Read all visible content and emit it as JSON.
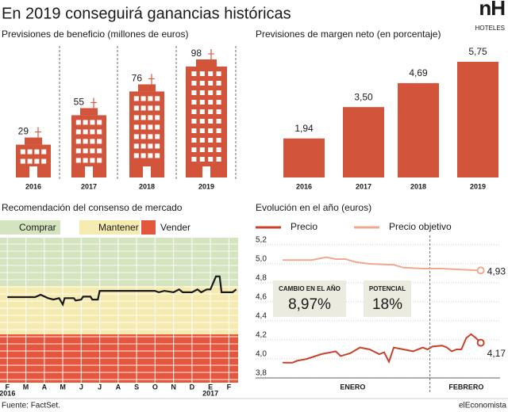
{
  "title": "En 2019 conseguirá ganancias históricas",
  "logo": {
    "mark": "nH",
    "name": "HOTELES"
  },
  "source": "Fuente: FactSet.",
  "brand": "elEconomista",
  "chart_data": [
    {
      "type": "building",
      "title": "Previsiones de beneficio (millones de euros)",
      "categories": [
        "2016",
        "2017",
        "2018",
        "2019"
      ],
      "values": [
        29,
        55,
        76,
        98
      ],
      "color": "#d2553b"
    },
    {
      "type": "bar",
      "title": "Previsiones de margen neto (en porcentaje)",
      "categories": [
        "2016",
        "2017",
        "2018",
        "2019"
      ],
      "values": [
        1.94,
        3.5,
        4.69,
        5.75
      ],
      "value_labels": [
        "1,94",
        "3,50",
        "4,69",
        "5,75"
      ],
      "color": "#d2553b"
    },
    {
      "type": "zone-line",
      "title": "Recomendación del consenso de mercado",
      "zones": [
        {
          "name": "Comprar",
          "color": "#d3e4bf",
          "range": [
            2,
            3
          ]
        },
        {
          "name": "Mantener",
          "color": "#f5ebb0",
          "range": [
            1,
            2
          ]
        },
        {
          "name": "Vender",
          "color": "#e4563d",
          "range": [
            0,
            1
          ]
        }
      ],
      "x": [
        0,
        1.5,
        1.8,
        2.2,
        2.5,
        2.8,
        3.0,
        3.1,
        3.6,
        3.7,
        4.0,
        4.1,
        4.5,
        4.6,
        4.9,
        5.0,
        8.0,
        8.2,
        8.5,
        9.0,
        9.3,
        9.5,
        10.0,
        10.3,
        10.5,
        10.8,
        11.0,
        11.3,
        11.5,
        11.6,
        12.2,
        12.4
      ],
      "values": [
        1.77,
        1.77,
        1.82,
        1.75,
        1.72,
        1.75,
        1.62,
        1.75,
        1.75,
        1.7,
        1.72,
        1.78,
        1.78,
        1.72,
        1.72,
        1.9,
        1.9,
        1.87,
        1.9,
        1.87,
        1.93,
        1.87,
        1.87,
        1.93,
        1.87,
        1.93,
        1.93,
        2.2,
        2.2,
        1.87,
        1.87,
        1.93
      ],
      "color": "#1a1a1a",
      "xlim": [
        -0.4,
        12.5
      ],
      "ylim": [
        0,
        3
      ],
      "xticks": [
        {
          "value": 0,
          "label": "F"
        },
        {
          "value": 1,
          "label": "M"
        },
        {
          "value": 2,
          "label": "A"
        },
        {
          "value": 3,
          "label": "M"
        },
        {
          "value": 4,
          "label": "J"
        },
        {
          "value": 5,
          "label": "J"
        },
        {
          "value": 6,
          "label": "A"
        },
        {
          "value": 7,
          "label": "S"
        },
        {
          "value": 8,
          "label": "O"
        },
        {
          "value": 9,
          "label": "N"
        },
        {
          "value": 10,
          "label": "D"
        },
        {
          "value": 11,
          "label": "E"
        },
        {
          "value": 12,
          "label": "F"
        }
      ],
      "year_labels": [
        {
          "value": 0,
          "label": "2016"
        },
        {
          "value": 11,
          "label": "2017"
        }
      ]
    },
    {
      "type": "line",
      "title": "Evolución en el año (euros)",
      "series": [
        {
          "name": "Precio",
          "color": "#c8412a",
          "x": [
            1,
            3,
            4,
            6,
            9,
            12,
            13,
            15,
            17,
            19,
            21,
            22,
            23,
            24,
            26,
            28,
            30,
            31,
            32,
            34,
            35,
            36,
            37,
            38,
            39,
            40,
            41,
            42
          ],
          "values": [
            3.96,
            3.96,
            3.98,
            4.0,
            4.05,
            4.08,
            4.03,
            4.06,
            4.12,
            4.1,
            4.05,
            4.07,
            3.97,
            4.12,
            4.1,
            4.08,
            4.12,
            4.1,
            4.13,
            4.14,
            4.12,
            4.08,
            4.1,
            4.1,
            4.22,
            4.26,
            4.22,
            4.17
          ],
          "value_labels": [
            null,
            null,
            null,
            null,
            null,
            null,
            null,
            null,
            null,
            null,
            null,
            null,
            null,
            null,
            null,
            null,
            null,
            null,
            null,
            null,
            null,
            null,
            null,
            null,
            null,
            null,
            null,
            "4,17"
          ]
        },
        {
          "name": "Precio objetivo",
          "color": "#f0a88e",
          "x": [
            1,
            7,
            10,
            12,
            14,
            16,
            19,
            24,
            26,
            30,
            34,
            38,
            42
          ],
          "values": [
            5.04,
            5.04,
            5.07,
            5.05,
            5.05,
            5.02,
            5.0,
            4.99,
            4.96,
            4.95,
            4.95,
            4.94,
            4.93
          ],
          "value_labels": [
            null,
            null,
            null,
            null,
            null,
            null,
            null,
            null,
            null,
            null,
            null,
            null,
            "4,93"
          ]
        }
      ],
      "xlim": [
        0,
        46
      ],
      "ylim": [
        3.8,
        5.2
      ],
      "yticks": [
        {
          "value": 3.8,
          "label": "3,8"
        },
        {
          "value": 4.0,
          "label": "4,0"
        },
        {
          "value": 4.2,
          "label": "4,2"
        },
        {
          "value": 4.4,
          "label": "4,4"
        },
        {
          "value": 4.6,
          "label": "4,6"
        },
        {
          "value": 4.8,
          "label": "4,8"
        },
        {
          "value": 5.0,
          "label": "5,0"
        },
        {
          "value": 5.2,
          "label": "5,2"
        }
      ],
      "xticks": [
        {
          "value": 15.5,
          "label": "ENERO"
        },
        {
          "value": 39,
          "label": "FEBRERO"
        }
      ],
      "month_breaks": [
        31.5
      ],
      "grid": true,
      "annotations": [
        {
          "label": "CAMBIO EN EL AÑO",
          "text": "8,97%"
        },
        {
          "label": "POTENCIAL",
          "text": "18%"
        }
      ]
    }
  ]
}
